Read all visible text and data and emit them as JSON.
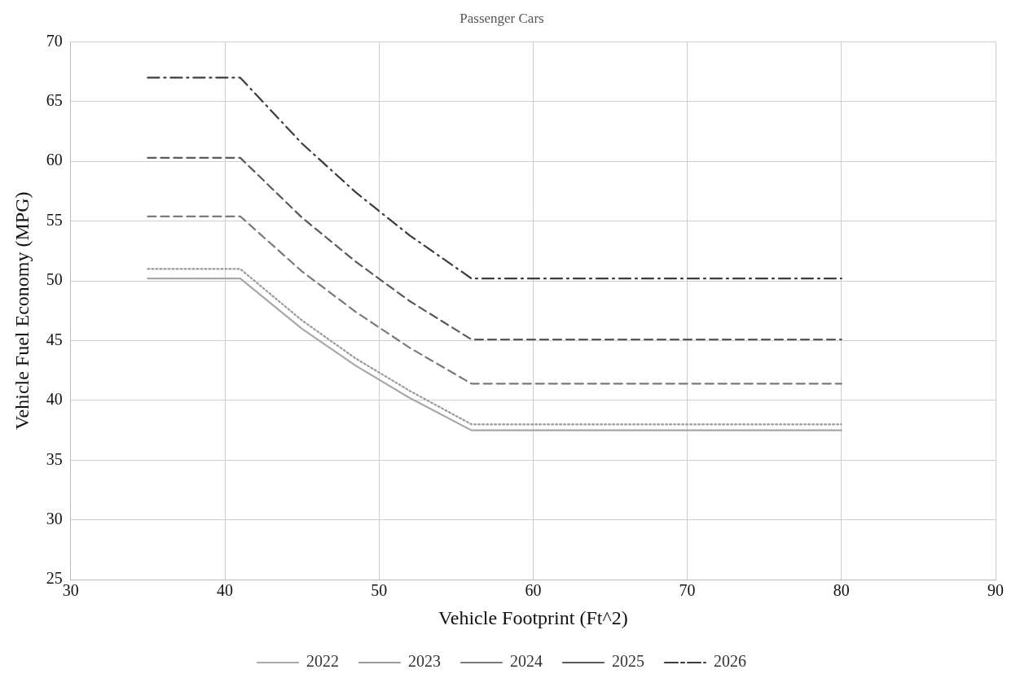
{
  "chart_data": {
    "type": "line",
    "title": "Passenger Cars",
    "xlabel": "Vehicle Footprint (Ft^2)",
    "ylabel": "Vehicle Fuel Economy (MPG)",
    "x": [
      35,
      41,
      45,
      48.5,
      52,
      56,
      80
    ],
    "series": [
      {
        "name": "2022",
        "color": "#a8a8a8",
        "line_style": "solid",
        "values": [
          50.2,
          50.2,
          46.0,
          42.9,
          40.2,
          37.5,
          37.5
        ]
      },
      {
        "name": "2023",
        "color": "#9a9a9a",
        "line_style": "dotted",
        "values": [
          51.0,
          51.0,
          46.7,
          43.5,
          40.8,
          38.0,
          38.0
        ]
      },
      {
        "name": "2024",
        "color": "#7a7a7a",
        "line_style": "dashed",
        "values": [
          55.4,
          55.4,
          50.8,
          47.4,
          44.4,
          41.4,
          41.4
        ]
      },
      {
        "name": "2025",
        "color": "#5a5a5a",
        "line_style": "dashed",
        "values": [
          60.3,
          60.3,
          55.3,
          51.6,
          48.3,
          45.1,
          45.1
        ]
      },
      {
        "name": "2026",
        "color": "#3c3c3c",
        "line_style": "dashdot",
        "values": [
          67.0,
          67.0,
          61.5,
          57.4,
          53.8,
          50.2,
          50.2
        ]
      }
    ],
    "xlim": [
      30,
      90
    ],
    "xticks": [
      30,
      40,
      50,
      60,
      70,
      80,
      90
    ],
    "ylim": [
      25,
      70
    ],
    "yticks": [
      25,
      30,
      35,
      40,
      45,
      50,
      55,
      60,
      65,
      70
    ],
    "grid": true,
    "legend": "bottom",
    "marker": "none"
  }
}
